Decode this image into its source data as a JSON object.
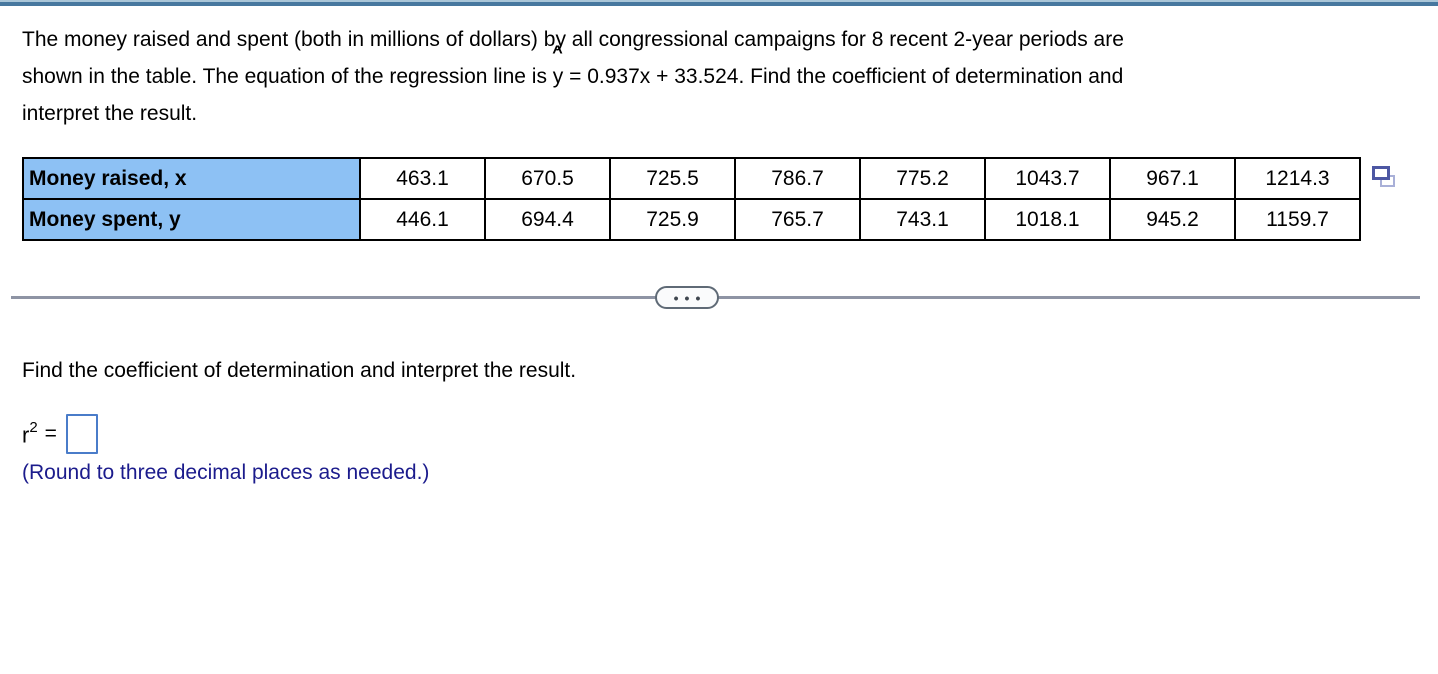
{
  "page": {
    "top_bar_color": "#47789F",
    "background": "#FFFFFF"
  },
  "problem": {
    "line1": "The money raised and spent (both in millions of dollars) by all congressional campaigns for 8 recent 2-year periods are",
    "line2_pre": "shown in the table. The equation of the regression line is ",
    "regression_y_base": "y",
    "regression_y_hat": "^",
    "line2_post": " = 0.937x + 33.524. Find the coefficient of determination and",
    "line3": "interpret the result."
  },
  "table": {
    "header_bg_color": "#8DC1F4",
    "rows": [
      {
        "label": "Money raised, x",
        "values": [
          "463.1",
          "670.5",
          "725.5",
          "786.7",
          "775.2",
          "1043.7",
          "967.1",
          "1214.3"
        ]
      },
      {
        "label": "Money spent, y",
        "values": [
          "446.1",
          "694.4",
          "725.9",
          "765.7",
          "743.1",
          "1018.1",
          "945.2",
          "1159.7"
        ]
      }
    ],
    "icons": {
      "copy": "two-overlapping-rectangles"
    }
  },
  "divider": {
    "icons": {
      "ellipsis": "•••"
    }
  },
  "answer": {
    "prompt": "Find the coefficient of determination and interpret the result.",
    "r_base": "r",
    "r_exponent": "2",
    "equals_sign": "=",
    "input_value": "",
    "round_note": "(Round to three decimal places as needed.)",
    "round_note_color": "#1B1B8C",
    "input_border_color": "#4A7CC9"
  }
}
